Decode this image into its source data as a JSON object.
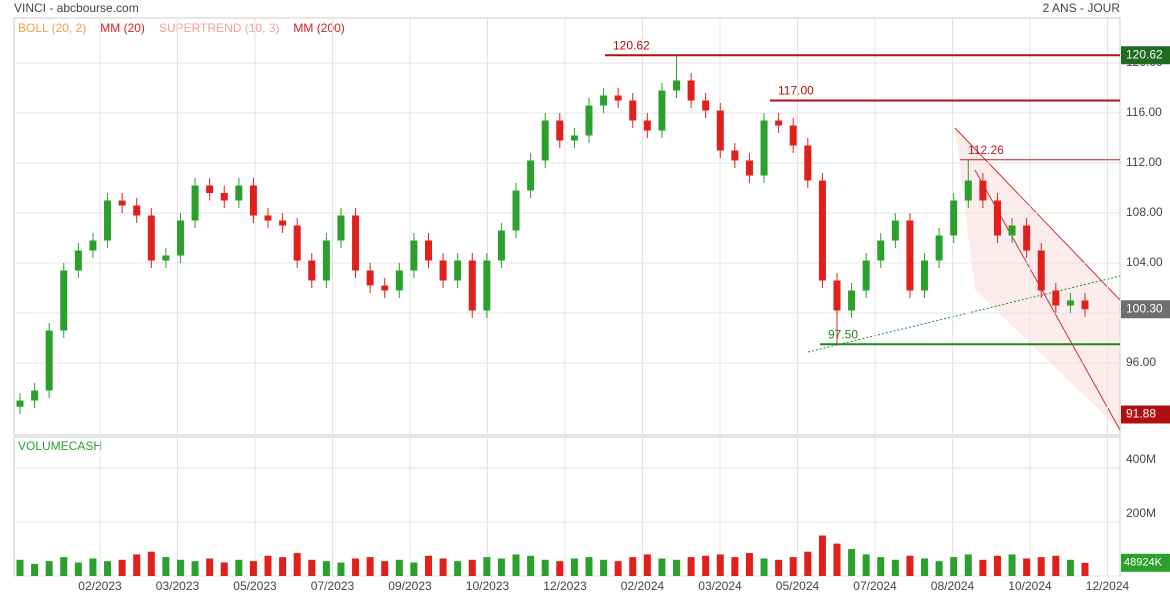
{
  "chart_data": {
    "type": "candlestick",
    "title": "VINCI - abcbourse.com",
    "period": "2 ANS - JOUR",
    "indicators": [
      {
        "name": "BOLL (20, 2)",
        "color": "#f0a040"
      },
      {
        "name": "MM (20)",
        "color": "#d62020"
      },
      {
        "name": "SUPERTREND (10, 3)",
        "color": "#f4a0a0"
      },
      {
        "name": "MM (200)",
        "color": "#d62020"
      }
    ],
    "xtick_labels": [
      "02/2023",
      "03/2023",
      "05/2023",
      "07/2023",
      "09/2023",
      "10/2023",
      "12/2023",
      "02/2024",
      "03/2024",
      "05/2024",
      "07/2024",
      "08/2024",
      "10/2024",
      "12/2024"
    ],
    "up_color": "#2ca02c",
    "down_color": "#e0201b",
    "open": [
      92.5,
      93.0,
      93.8,
      98.6,
      103.4,
      105.0,
      105.8,
      109.0,
      108.6,
      107.8,
      104.2,
      104.6,
      107.4,
      110.2,
      109.6,
      109.0,
      110.2,
      107.8,
      107.4,
      107.0,
      104.2,
      102.6,
      105.8,
      107.8,
      103.4,
      102.2,
      101.8,
      103.4,
      105.8,
      104.2,
      102.6,
      104.2,
      100.2,
      104.2,
      106.6,
      109.8,
      112.2,
      115.4,
      113.8,
      114.2,
      116.6,
      117.4,
      117.0,
      115.4,
      114.6,
      117.8,
      118.6,
      117.0,
      116.2,
      113.0,
      112.2,
      111.0,
      115.4,
      115.0,
      113.4,
      110.6,
      102.6,
      100.2,
      101.8,
      104.2,
      105.8,
      107.4,
      101.8,
      104.2,
      106.2,
      109.0,
      110.6,
      109.0,
      106.2,
      107.0,
      105.0,
      101.8,
      100.6,
      101.0
    ],
    "high": [
      93.6,
      94.4,
      99.2,
      104.0,
      105.6,
      106.4,
      109.6,
      109.6,
      109.2,
      108.4,
      105.2,
      108.0,
      110.8,
      110.8,
      110.2,
      110.8,
      110.8,
      108.4,
      108.0,
      107.6,
      104.8,
      106.4,
      108.4,
      108.4,
      104.0,
      102.8,
      104.0,
      106.4,
      106.4,
      104.8,
      104.8,
      104.8,
      104.8,
      107.2,
      110.4,
      112.8,
      116.0,
      116.0,
      114.8,
      117.2,
      118.0,
      118.0,
      117.6,
      116.0,
      118.4,
      120.62,
      119.2,
      117.6,
      116.8,
      113.6,
      112.8,
      116.0,
      116.0,
      115.6,
      114.0,
      111.2,
      103.2,
      102.4,
      104.8,
      106.4,
      108.0,
      108.0,
      104.8,
      106.8,
      109.6,
      112.26,
      111.2,
      109.6,
      107.6,
      107.6,
      105.6,
      102.4,
      101.6,
      101.6
    ],
    "low": [
      91.9,
      92.4,
      93.2,
      98.0,
      102.8,
      104.4,
      105.2,
      108.0,
      107.2,
      103.6,
      103.6,
      104.0,
      106.8,
      109.0,
      108.4,
      108.4,
      107.2,
      106.8,
      106.4,
      103.6,
      102.0,
      102.0,
      105.2,
      102.8,
      101.6,
      101.2,
      101.2,
      102.8,
      103.6,
      102.0,
      102.0,
      99.6,
      99.6,
      103.6,
      106.0,
      109.2,
      111.6,
      113.2,
      113.2,
      113.6,
      116.0,
      116.4,
      114.8,
      114.0,
      114.0,
      117.2,
      116.4,
      115.6,
      112.4,
      111.6,
      110.4,
      110.4,
      114.4,
      112.8,
      110.0,
      102.0,
      97.5,
      99.6,
      101.2,
      103.6,
      105.2,
      101.2,
      101.2,
      103.6,
      105.6,
      108.4,
      108.4,
      105.6,
      105.6,
      104.4,
      101.2,
      100.0,
      100.0,
      99.7
    ],
    "close": [
      93.0,
      93.8,
      98.6,
      103.4,
      105.0,
      105.8,
      109.0,
      108.6,
      107.8,
      104.2,
      104.6,
      107.4,
      110.2,
      109.6,
      109.0,
      110.2,
      107.8,
      107.4,
      107.0,
      104.2,
      102.6,
      105.8,
      107.8,
      103.4,
      102.2,
      101.8,
      103.4,
      105.8,
      104.2,
      102.6,
      104.2,
      100.2,
      104.2,
      106.6,
      109.8,
      112.2,
      115.4,
      113.8,
      114.2,
      116.6,
      117.4,
      117.0,
      115.4,
      114.6,
      117.8,
      118.6,
      117.0,
      116.2,
      113.0,
      112.2,
      111.0,
      115.4,
      115.0,
      113.4,
      110.6,
      102.6,
      100.2,
      101.8,
      104.2,
      105.8,
      107.4,
      101.8,
      104.2,
      106.2,
      109.0,
      110.6,
      109.0,
      106.2,
      107.0,
      105.0,
      101.8,
      100.6,
      101.0,
      100.3
    ],
    "ylim": [
      90.24,
      123.6
    ],
    "yticks": [
      {
        "value": 96,
        "label": "96.00"
      },
      {
        "value": 100,
        "label": "100.00"
      },
      {
        "value": 104,
        "label": "104.00"
      },
      {
        "value": 108,
        "label": "108.00"
      },
      {
        "value": 112,
        "label": "112.00"
      },
      {
        "value": 116,
        "label": "116.00"
      },
      {
        "value": 120,
        "label": "120.00"
      }
    ],
    "levels": [
      {
        "value": 120.62,
        "label": "120.62",
        "color": "#b01010"
      },
      {
        "value": 117.0,
        "label": "117.00",
        "color": "#b01010"
      },
      {
        "value": 112.26,
        "label": "112.26",
        "color": "#c02020"
      },
      {
        "value": 97.5,
        "label": "97.50",
        "color": "#1a8a1a"
      }
    ],
    "price_tags": [
      {
        "value": 120.62,
        "label": "120.62",
        "color": "#1f6b1f"
      },
      {
        "value": 100.3,
        "label": "100.30",
        "color": "#6e6e6e"
      },
      {
        "value": 91.88,
        "label": "91.88",
        "color": "#b01010"
      }
    ],
    "volume": {
      "name": "VOLUMECASH",
      "color": "#2ca02c",
      "values": [
        60,
        45,
        55,
        70,
        50,
        65,
        55,
        60,
        80,
        90,
        70,
        60,
        55,
        65,
        50,
        60,
        55,
        75,
        70,
        85,
        60,
        55,
        50,
        65,
        70,
        55,
        60,
        50,
        75,
        65,
        55,
        60,
        70,
        65,
        80,
        75,
        60,
        55,
        65,
        70,
        60,
        55,
        70,
        80,
        65,
        60,
        70,
        75,
        80,
        70,
        85,
        65,
        60,
        70,
        90,
        150,
        120,
        100,
        80,
        70,
        60,
        75,
        65,
        55,
        70,
        80,
        60,
        75,
        80,
        65,
        70,
        75,
        60,
        48.924
      ],
      "value_labels": [
        null,
        null,
        null,
        null,
        null,
        null,
        null,
        null,
        null,
        null,
        null,
        null,
        null,
        null,
        null,
        null,
        null,
        null,
        null,
        null,
        null,
        null,
        null,
        null,
        null,
        null,
        null,
        null,
        null,
        null,
        null,
        null,
        null,
        null,
        null,
        null,
        null,
        null,
        null,
        null,
        null,
        null,
        null,
        null,
        null,
        null,
        null,
        null,
        null,
        null,
        null,
        null,
        null,
        null,
        null,
        null,
        null,
        null,
        null,
        null,
        null,
        null,
        null,
        null,
        null,
        null,
        null,
        null,
        null,
        null,
        null,
        null,
        null,
        "48924K"
      ],
      "ylim": [
        0,
        515
      ],
      "yticks": [
        {
          "value": 0,
          "label": "0"
        },
        {
          "value": 200,
          "label": "200M"
        },
        {
          "value": 400,
          "label": "400M"
        }
      ]
    }
  }
}
